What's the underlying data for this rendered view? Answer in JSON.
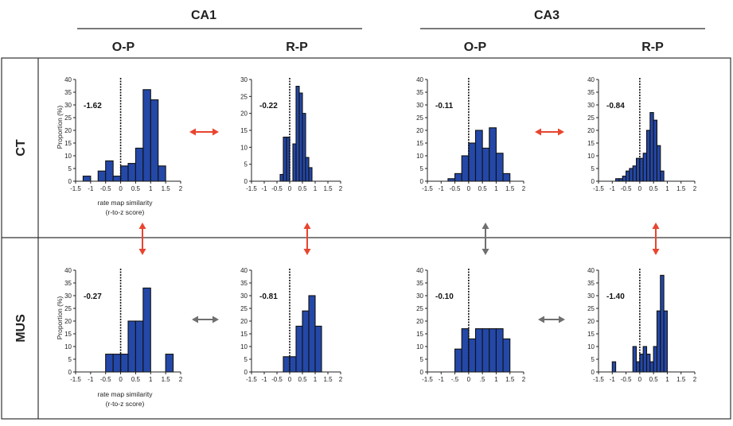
{
  "header": {
    "region_labels": [
      "CA1",
      "CA3"
    ],
    "condition_labels": [
      "O-P",
      "R-P",
      "O-P",
      "R-P"
    ],
    "row_labels": [
      "CT",
      "MUS"
    ]
  },
  "colors": {
    "bar_fill": "#2448a8",
    "bar_stroke": "#111111",
    "red_arrow": "#e8452f",
    "gray_arrow": "#6f6f6f",
    "bracket": "#7a7a7a",
    "frame": "#333333"
  },
  "axis_labels": {
    "ylabel": "Proportion (%)",
    "xlabel_line1": "rate map similarity",
    "xlabel_line2": "(r-to-z score)"
  },
  "chart_data": [
    {
      "id": "ct-ca1-op",
      "type": "bar",
      "row": "CT",
      "region": "CA1",
      "condition": "O-P",
      "annotation": "-1.62",
      "bin_width": 0.25,
      "bin_lefts": [
        -1.25,
        -1.0,
        -0.75,
        -0.5,
        -0.25,
        0.0,
        0.25,
        0.5,
        0.75,
        1.0,
        1.25,
        1.5,
        1.75
      ],
      "values": [
        2,
        0,
        4,
        8,
        2,
        6,
        7,
        13,
        36,
        32,
        6,
        0,
        0
      ],
      "ylim": [
        0,
        40
      ],
      "yticks": [
        "0",
        "5",
        "10",
        "15",
        "20",
        "25",
        "30",
        "35",
        "40"
      ],
      "xlim": [
        -1.5,
        2
      ],
      "xticks": [
        "-1.5",
        "-1",
        "-0.5",
        "0",
        "0.5",
        "1",
        "1.5",
        "2"
      ]
    },
    {
      "id": "ct-ca1-rp",
      "type": "bar",
      "row": "CT",
      "region": "CA1",
      "condition": "R-P",
      "annotation": "-0.22",
      "bin_width": 0.125,
      "bin_lefts": [
        -0.375,
        -0.25,
        -0.125,
        0.0,
        0.125,
        0.25,
        0.375,
        0.5,
        0.625,
        0.75,
        0.875
      ],
      "values": [
        2,
        13,
        13,
        0,
        11,
        28,
        26,
        20,
        7,
        4,
        0
      ],
      "ylim": [
        0,
        30
      ],
      "yticks": [
        "0",
        "5",
        "10",
        "15",
        "20",
        "25",
        "30"
      ],
      "xlim": [
        -1.5,
        2
      ],
      "xticks": [
        "-1.5",
        "-1",
        "-0.5",
        "0",
        "0.5",
        "1",
        "1.5",
        "2"
      ]
    },
    {
      "id": "ct-ca3-op",
      "type": "bar",
      "row": "CT",
      "region": "CA3",
      "condition": "O-P",
      "annotation": "-0.11",
      "bin_width": 0.25,
      "bin_lefts": [
        -0.75,
        -0.5,
        -0.25,
        0.0,
        0.25,
        0.5,
        0.75,
        1.0,
        1.25
      ],
      "values": [
        1,
        3,
        10,
        15,
        20,
        13,
        21,
        11,
        3
      ],
      "ylim": [
        0,
        40
      ],
      "yticks": [
        "0",
        "5",
        "10",
        "15",
        "20",
        "25",
        "30",
        "35",
        "40"
      ],
      "xlim": [
        -1.5,
        2
      ],
      "xticks": [
        "-1.5",
        "-1",
        "-0.5",
        "0",
        "0.5",
        "1",
        "1.5",
        "2"
      ]
    },
    {
      "id": "ct-ca3-rp",
      "type": "bar",
      "row": "CT",
      "region": "CA3",
      "condition": "R-P",
      "annotation": "-0.84",
      "bin_width": 0.125,
      "bin_lefts": [
        -0.875,
        -0.75,
        -0.625,
        -0.5,
        -0.375,
        -0.25,
        -0.125,
        0.0,
        0.125,
        0.25,
        0.375,
        0.5,
        0.625,
        0.75,
        0.875
      ],
      "values": [
        1,
        1,
        2,
        4,
        5,
        6,
        9,
        9,
        11,
        20,
        27,
        24,
        14,
        4,
        0
      ],
      "ylim": [
        0,
        40
      ],
      "yticks": [
        "0",
        "5",
        "10",
        "15",
        "20",
        "25",
        "30",
        "35",
        "40"
      ],
      "xlim": [
        -1.5,
        2
      ],
      "xticks": [
        "-1.5",
        "-1",
        "-0.5",
        "0",
        "0.5",
        "1",
        "1.5",
        "2"
      ]
    },
    {
      "id": "mus-ca1-op",
      "type": "bar",
      "row": "MUS",
      "region": "CA1",
      "condition": "O-P",
      "annotation": "-0.27",
      "bin_width": 0.25,
      "bin_lefts": [
        -0.5,
        -0.25,
        0.0,
        0.25,
        0.5,
        0.75,
        1.0,
        1.25,
        1.5
      ],
      "values": [
        7,
        7,
        7,
        20,
        20,
        33,
        0,
        0,
        7
      ],
      "ylim": [
        0,
        40
      ],
      "yticks": [
        "0",
        "5",
        "10",
        "15",
        "20",
        "25",
        "30",
        "35",
        "40"
      ],
      "xlim": [
        -1.5,
        2
      ],
      "xticks": [
        "-1.5",
        "-1",
        "-0.5",
        "0",
        "0.5",
        "1",
        "1.5",
        "2"
      ]
    },
    {
      "id": "mus-ca1-rp",
      "type": "bar",
      "row": "MUS",
      "region": "CA1",
      "condition": "R-P",
      "annotation": "-0.81",
      "bin_width": 0.25,
      "bin_lefts": [
        -0.25,
        0.0,
        0.25,
        0.5,
        0.75,
        1.0
      ],
      "values": [
        6,
        6,
        18,
        24,
        30,
        18
      ],
      "ylim": [
        0,
        40
      ],
      "yticks": [
        "0",
        "5",
        "10",
        "15",
        "20",
        "25",
        "30",
        "35",
        "40"
      ],
      "xlim": [
        -1.5,
        2
      ],
      "xticks": [
        "-1.5",
        "-1",
        "-0.5",
        "0",
        "0.5",
        "1",
        "1.5",
        "2"
      ]
    },
    {
      "id": "mus-ca3-op",
      "type": "bar",
      "row": "MUS",
      "region": "CA3",
      "condition": "O-P",
      "annotation": "-0.10",
      "bin_width": 0.25,
      "bin_lefts": [
        -0.5,
        -0.25,
        0.0,
        0.25,
        0.5,
        0.75,
        1.0,
        1.25
      ],
      "values": [
        9,
        17,
        13,
        17,
        17,
        17,
        17,
        13
      ],
      "ylim": [
        0,
        40
      ],
      "yticks": [
        "0",
        "5",
        "10",
        "15",
        "20",
        "25",
        "30",
        "35",
        "40"
      ],
      "xlim": [
        -1.5,
        2
      ],
      "xticks": [
        "-1.5",
        "-1",
        "-.5",
        "0",
        ".5",
        "1",
        "1.5",
        "2"
      ]
    },
    {
      "id": "mus-ca3-rp",
      "type": "bar",
      "row": "MUS",
      "region": "CA3",
      "condition": "R-P",
      "annotation": "-1.40",
      "bin_width": 0.125,
      "bin_lefts": [
        -1.0,
        -0.875,
        -0.75,
        -0.625,
        -0.5,
        -0.375,
        -0.25,
        -0.125,
        0.0,
        0.125,
        0.25,
        0.375,
        0.5,
        0.625,
        0.75,
        0.875,
        1.0
      ],
      "values": [
        4,
        0,
        0,
        0,
        0,
        0,
        10,
        4,
        7,
        10,
        7,
        4,
        10,
        24,
        38,
        24,
        0
      ],
      "ylim": [
        0,
        40
      ],
      "yticks": [
        "0",
        "5",
        "10",
        "15",
        "20",
        "25",
        "30",
        "35",
        "40"
      ],
      "xlim": [
        -1.5,
        2
      ],
      "xticks": [
        "-1.5",
        "-1",
        "-0.5",
        "0",
        "0.5",
        "1",
        "1.5",
        "2"
      ]
    }
  ]
}
